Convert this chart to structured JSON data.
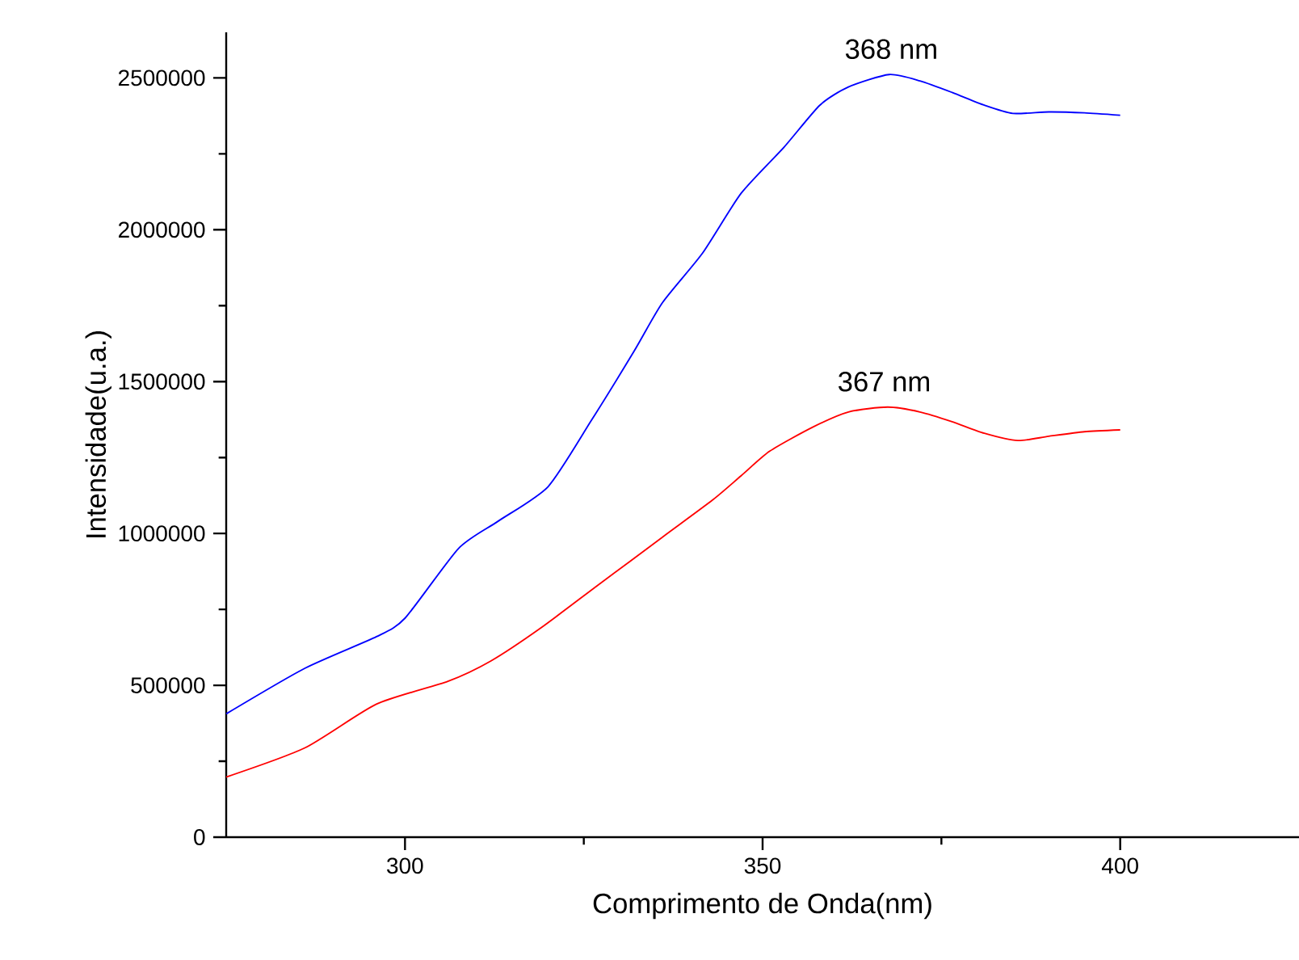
{
  "chart_data": {
    "type": "line",
    "xlabel": "Comprimento de Onda(nm)",
    "ylabel": "Intensidade(u.a.)",
    "xlim": [
      275,
      425
    ],
    "xticks": [
      300,
      350,
      400
    ],
    "ylim": [
      0,
      2650000
    ],
    "yticks": [
      0,
      500000,
      1000000,
      1500000,
      2000000,
      2500000
    ],
    "series": [
      {
        "color": "#0000ff",
        "x": [
          275,
          286,
          296,
          300,
          307.5,
          313,
          320,
          326,
          332,
          336,
          341.6,
          347,
          353,
          358,
          362,
          367.7,
          372,
          376.5,
          381,
          385,
          390,
          395,
          400
        ],
        "values": [
          406000,
          556000,
          660000,
          721000,
          951000,
          1040000,
          1154000,
          1370000,
          1599000,
          1760000,
          1923000,
          2120000,
          2272000,
          2410000,
          2470000,
          2511000,
          2490000,
          2452000,
          2410000,
          2383000,
          2388000,
          2385000,
          2377000
        ]
      },
      {
        "color": "#ff0000",
        "x": [
          275,
          286,
          296,
          306,
          312,
          319,
          327,
          336,
          343,
          347,
          351,
          357,
          362,
          367.5,
          372,
          376.5,
          381,
          385.7,
          390,
          395,
          400
        ],
        "values": [
          198000,
          294000,
          438000,
          513000,
          580000,
          689000,
          830000,
          988000,
          1110000,
          1190000,
          1271000,
          1350000,
          1400000,
          1416000,
          1400000,
          1368000,
          1330000,
          1306000,
          1320000,
          1335000,
          1341000
        ]
      }
    ],
    "annotations": [
      {
        "text": "368 nm",
        "x": 368,
        "y": 2511000
      },
      {
        "text": "367 nm",
        "x": 367,
        "y": 1416000
      }
    ],
    "grid": false,
    "marker": "none",
    "line_style": "solid"
  }
}
